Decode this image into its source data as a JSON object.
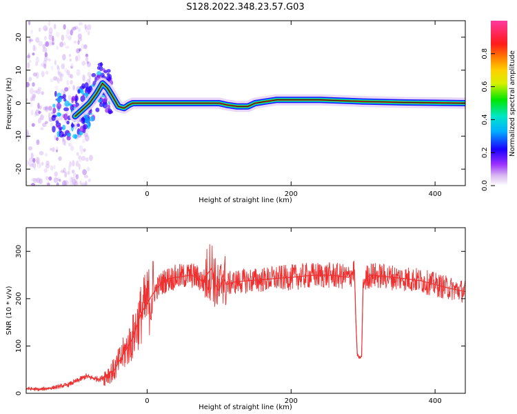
{
  "figure_title": "S128.2022.348.23.57.G03",
  "chart_data": [
    {
      "type": "heatmap",
      "title": "",
      "xlabel": "Height of straight line (km)",
      "ylabel": "Frequency (Hz)",
      "xlim": [
        -168,
        442
      ],
      "ylim": [
        -25,
        25
      ],
      "xticks": [
        0,
        200,
        400
      ],
      "yticks": [
        -20,
        -10,
        0,
        10,
        20
      ],
      "grid": false,
      "colorbar": {
        "label": "Normalized spectral amplitude",
        "range": [
          0,
          1
        ],
        "ticks": [
          "0.0",
          "0.2",
          "0.4",
          "0.6",
          "0.8"
        ],
        "colormap": [
          "#ffffff",
          "#d9b8f0",
          "#9b30ff",
          "#1a00ff",
          "#00b0ff",
          "#00e6c8",
          "#00e600",
          "#d8f000",
          "#ffd000",
          "#ff7a00",
          "#ff1a1a",
          "#ff3aa0"
        ]
      },
      "ridge": {
        "x": [
          -100,
          -90,
          -80,
          -70,
          -62,
          -55,
          -48,
          -40,
          -32,
          -25,
          -20,
          0,
          50,
          100,
          110,
          125,
          140,
          150,
          165,
          180,
          200,
          240,
          300,
          360,
          442
        ],
        "y": [
          -4,
          -2,
          0,
          3,
          6,
          4.5,
          2,
          -1,
          -1.5,
          -0.5,
          0,
          0,
          0,
          0,
          -0.5,
          -1,
          -1,
          0,
          0.5,
          1,
          1,
          1,
          0.5,
          0.2,
          0
        ]
      }
    },
    {
      "type": "line",
      "title": "",
      "xlabel": "Height of straight line (km)",
      "ylabel": "SNR (10 * v/v)",
      "xlim": [
        -168,
        442
      ],
      "ylim": [
        0,
        350
      ],
      "xticks": [
        0,
        200,
        400
      ],
      "yticks": [
        0,
        100,
        200,
        300
      ],
      "grid": false,
      "color": "#ee3030",
      "series": [
        {
          "name": "",
          "x": [
            -168,
            -150,
            -130,
            -110,
            -95,
            -85,
            -75,
            -65,
            -55,
            -45,
            -38,
            -30,
            -22,
            -15,
            -8,
            0,
            8,
            15,
            22,
            30,
            40,
            50,
            60,
            70,
            78,
            85,
            90,
            95,
            100,
            105,
            110,
            120,
            140,
            160,
            180,
            200,
            220,
            240,
            260,
            280,
            285,
            288,
            290,
            292,
            295,
            298,
            300,
            305,
            310,
            330,
            360,
            380,
            400,
            420,
            442
          ],
          "y": [
            10,
            8,
            12,
            18,
            28,
            36,
            32,
            30,
            40,
            50,
            70,
            90,
            110,
            140,
            170,
            190,
            210,
            225,
            235,
            242,
            245,
            247,
            250,
            245,
            235,
            255,
            265,
            230,
            215,
            250,
            230,
            235,
            238,
            240,
            243,
            245,
            248,
            250,
            249,
            245,
            255,
            260,
            150,
            80,
            75,
            78,
            230,
            245,
            250,
            247,
            242,
            238,
            230,
            222,
            215
          ]
        }
      ]
    }
  ]
}
